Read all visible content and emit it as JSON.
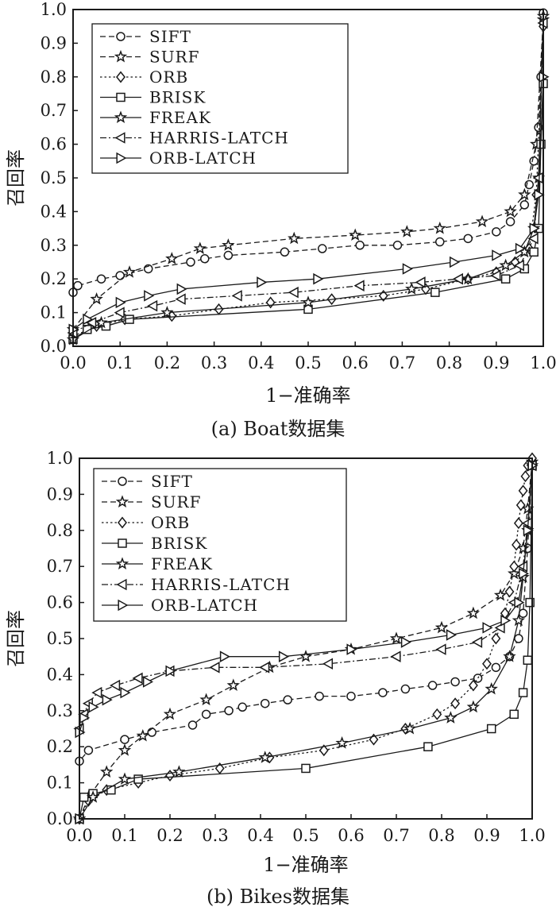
{
  "chart_data": [
    {
      "type": "line",
      "caption": "(a) Boat数据集",
      "xlabel": "1−准确率",
      "ylabel": "召回率",
      "xlim": [
        0.0,
        1.0
      ],
      "ylim": [
        0.0,
        1.0
      ],
      "xticks": [
        "0.0",
        "0.1",
        "0.2",
        "0.3",
        "0.4",
        "0.5",
        "0.6",
        "0.7",
        "0.8",
        "0.9",
        "1.0"
      ],
      "yticks": [
        "0.0",
        "0.1",
        "0.2",
        "0.3",
        "0.4",
        "0.5",
        "0.6",
        "0.7",
        "0.8",
        "0.9",
        "1.0"
      ],
      "grid": false,
      "legend_position": "top-left",
      "series": [
        {
          "name": "SIFT",
          "marker": "circle",
          "dash": "dashed",
          "x": [
            0.0,
            0.01,
            0.06,
            0.1,
            0.16,
            0.25,
            0.28,
            0.33,
            0.45,
            0.53,
            0.61,
            0.69,
            0.78,
            0.84,
            0.9,
            0.93,
            0.96,
            0.97,
            0.98,
            0.99,
            0.995,
            1.0
          ],
          "y": [
            0.16,
            0.18,
            0.2,
            0.21,
            0.23,
            0.25,
            0.26,
            0.27,
            0.28,
            0.29,
            0.3,
            0.3,
            0.31,
            0.32,
            0.34,
            0.37,
            0.42,
            0.48,
            0.55,
            0.65,
            0.8,
            0.99
          ]
        },
        {
          "name": "SURF",
          "marker": "star",
          "dash": "dashed",
          "x": [
            0.0,
            0.05,
            0.12,
            0.21,
            0.27,
            0.33,
            0.47,
            0.6,
            0.71,
            0.78,
            0.87,
            0.93,
            0.96,
            0.985,
            1.0
          ],
          "y": [
            0.05,
            0.14,
            0.22,
            0.26,
            0.29,
            0.3,
            0.32,
            0.33,
            0.34,
            0.35,
            0.37,
            0.4,
            0.45,
            0.6,
            0.97
          ]
        },
        {
          "name": "ORB",
          "marker": "diamond",
          "dash": "dotted",
          "x": [
            0.0,
            0.05,
            0.11,
            0.21,
            0.31,
            0.42,
            0.55,
            0.66,
            0.75,
            0.84,
            0.9,
            0.94,
            0.97,
            0.985,
            1.0
          ],
          "y": [
            0.03,
            0.06,
            0.08,
            0.09,
            0.11,
            0.13,
            0.14,
            0.15,
            0.17,
            0.2,
            0.22,
            0.25,
            0.29,
            0.45,
            0.95
          ]
        },
        {
          "name": "BRISK",
          "marker": "square",
          "dash": "solid",
          "x": [
            0.0,
            0.03,
            0.07,
            0.12,
            0.5,
            0.77,
            0.92,
            0.96,
            0.98,
            0.99,
            0.995,
            1.0
          ],
          "y": [
            0.02,
            0.05,
            0.06,
            0.08,
            0.11,
            0.16,
            0.2,
            0.23,
            0.28,
            0.35,
            0.6,
            0.78
          ]
        },
        {
          "name": "FREAK",
          "marker": "star",
          "dash": "solid",
          "x": [
            0.0,
            0.06,
            0.2,
            0.5,
            0.72,
            0.84,
            0.92,
            0.96,
            0.98,
            0.99,
            1.0
          ],
          "y": [
            0.02,
            0.07,
            0.1,
            0.13,
            0.17,
            0.2,
            0.24,
            0.28,
            0.35,
            0.5,
            0.98
          ]
        },
        {
          "name": "HARRIS-LATCH",
          "marker": "triangle-left",
          "dash": "dashdot",
          "x": [
            0.0,
            0.04,
            0.1,
            0.17,
            0.23,
            0.35,
            0.47,
            0.61,
            0.74,
            0.82,
            0.9,
            0.95,
            0.98,
            0.99,
            1.0
          ],
          "y": [
            0.04,
            0.07,
            0.1,
            0.12,
            0.14,
            0.15,
            0.16,
            0.18,
            0.19,
            0.2,
            0.21,
            0.24,
            0.32,
            0.5,
            0.96
          ]
        },
        {
          "name": "ORB-LATCH",
          "marker": "triangle-right",
          "dash": "solid",
          "x": [
            0.0,
            0.03,
            0.1,
            0.16,
            0.23,
            0.4,
            0.52,
            0.71,
            0.81,
            0.9,
            0.95,
            0.98,
            0.99,
            1.0
          ],
          "y": [
            0.05,
            0.08,
            0.13,
            0.15,
            0.17,
            0.19,
            0.2,
            0.23,
            0.25,
            0.27,
            0.29,
            0.35,
            0.45,
            0.8
          ]
        }
      ]
    },
    {
      "type": "line",
      "caption": "(b) Bikes数据集",
      "xlabel": "1−准确率",
      "ylabel": "召回率",
      "xlim": [
        0.0,
        1.0
      ],
      "ylim": [
        0.0,
        1.0
      ],
      "xticks": [
        "0.0",
        "0.1",
        "0.2",
        "0.3",
        "0.4",
        "0.5",
        "0.6",
        "0.7",
        "0.8",
        "0.9",
        "1.0"
      ],
      "yticks": [
        "0.0",
        "0.1",
        "0.2",
        "0.3",
        "0.4",
        "0.5",
        "0.6",
        "0.7",
        "0.8",
        "0.9",
        "1.0"
      ],
      "grid": false,
      "legend_position": "top-left",
      "series": [
        {
          "name": "SIFT",
          "marker": "circle",
          "dash": "dashed",
          "x": [
            0.0,
            0.0,
            0.02,
            0.1,
            0.16,
            0.25,
            0.28,
            0.33,
            0.36,
            0.41,
            0.46,
            0.53,
            0.6,
            0.67,
            0.72,
            0.78,
            0.83,
            0.88,
            0.92,
            0.95,
            0.97,
            0.98,
            0.99,
            1.0
          ],
          "y": [
            0.0,
            0.16,
            0.19,
            0.22,
            0.24,
            0.26,
            0.29,
            0.3,
            0.31,
            0.32,
            0.33,
            0.34,
            0.34,
            0.35,
            0.36,
            0.37,
            0.38,
            0.39,
            0.42,
            0.45,
            0.5,
            0.57,
            0.75,
            0.99
          ]
        },
        {
          "name": "SURF",
          "marker": "star",
          "dash": "dashed",
          "x": [
            0.0,
            0.02,
            0.06,
            0.1,
            0.14,
            0.2,
            0.28,
            0.34,
            0.42,
            0.5,
            0.6,
            0.7,
            0.8,
            0.87,
            0.93,
            0.96,
            0.98,
            0.99,
            1.0
          ],
          "y": [
            0.0,
            0.06,
            0.13,
            0.19,
            0.23,
            0.29,
            0.33,
            0.37,
            0.42,
            0.45,
            0.47,
            0.5,
            0.53,
            0.57,
            0.62,
            0.68,
            0.75,
            0.86,
            0.99
          ]
        },
        {
          "name": "ORB",
          "marker": "diamond",
          "dash": "dotted",
          "x": [
            0.0,
            0.02,
            0.06,
            0.13,
            0.2,
            0.31,
            0.42,
            0.54,
            0.65,
            0.72,
            0.79,
            0.83,
            0.87,
            0.9,
            0.92,
            0.94,
            0.95,
            0.96,
            0.965,
            0.97,
            0.975,
            0.98,
            0.985,
            0.99,
            1.0
          ],
          "y": [
            0.0,
            0.05,
            0.08,
            0.1,
            0.12,
            0.14,
            0.17,
            0.19,
            0.22,
            0.25,
            0.29,
            0.32,
            0.37,
            0.43,
            0.5,
            0.57,
            0.63,
            0.7,
            0.76,
            0.82,
            0.87,
            0.91,
            0.95,
            0.98,
            1.0
          ]
        },
        {
          "name": "BRISK",
          "marker": "square",
          "dash": "solid",
          "x": [
            0.0,
            0.01,
            0.03,
            0.07,
            0.13,
            0.5,
            0.77,
            0.91,
            0.96,
            0.98,
            0.99,
            0.995,
            1.0
          ],
          "y": [
            0.0,
            0.06,
            0.07,
            0.08,
            0.11,
            0.14,
            0.2,
            0.25,
            0.29,
            0.35,
            0.44,
            0.6,
            0.98
          ]
        },
        {
          "name": "FREAK",
          "marker": "star",
          "dash": "solid",
          "x": [
            0.0,
            0.03,
            0.1,
            0.22,
            0.41,
            0.58,
            0.73,
            0.82,
            0.87,
            0.91,
            0.95,
            0.97,
            0.98,
            0.99,
            1.0
          ],
          "y": [
            0.0,
            0.06,
            0.11,
            0.13,
            0.17,
            0.21,
            0.25,
            0.28,
            0.31,
            0.36,
            0.45,
            0.55,
            0.67,
            0.8,
            0.98
          ]
        },
        {
          "name": "HARRIS-LATCH",
          "marker": "triangle-left",
          "dash": "dashdot",
          "x": [
            0.0,
            0.0,
            0.01,
            0.02,
            0.04,
            0.08,
            0.13,
            0.2,
            0.3,
            0.41,
            0.55,
            0.7,
            0.8,
            0.88,
            0.93,
            0.96,
            0.98,
            0.99,
            1.0
          ],
          "y": [
            0.0,
            0.25,
            0.29,
            0.32,
            0.35,
            0.37,
            0.39,
            0.41,
            0.42,
            0.42,
            0.43,
            0.45,
            0.47,
            0.49,
            0.53,
            0.6,
            0.7,
            0.82,
            0.98
          ]
        },
        {
          "name": "ORB-LATCH",
          "marker": "triangle-right",
          "dash": "solid",
          "x": [
            0.0,
            0.0,
            0.01,
            0.03,
            0.06,
            0.1,
            0.15,
            0.2,
            0.32,
            0.45,
            0.6,
            0.72,
            0.82,
            0.9,
            0.94,
            0.97,
            0.98,
            0.99,
            1.0
          ],
          "y": [
            0.0,
            0.24,
            0.28,
            0.31,
            0.33,
            0.35,
            0.38,
            0.41,
            0.45,
            0.45,
            0.47,
            0.49,
            0.51,
            0.53,
            0.55,
            0.6,
            0.68,
            0.8,
            0.98
          ]
        }
      ]
    }
  ]
}
